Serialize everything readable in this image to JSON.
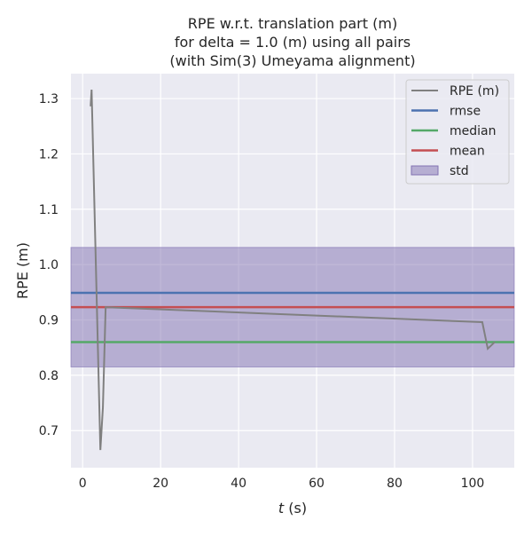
{
  "chart_data": {
    "type": "line",
    "title": [
      "RPE w.r.t. translation part (m)",
      "for delta = 1.0 (m) using all pairs",
      "(with Sim(3) Umeyama alignment)"
    ],
    "xlabel_italic": "t",
    "xlabel_unit": " (s)",
    "ylabel": "RPE (m)",
    "xlim": [
      -3,
      110.7
    ],
    "ylim": [
      0.633,
      1.345
    ],
    "xticks": [
      0,
      20,
      40,
      60,
      80,
      100
    ],
    "yticks": [
      0.7,
      0.8,
      0.9,
      1.0,
      1.1,
      1.2,
      1.3
    ],
    "ytick_labels": [
      "0.7",
      "0.8",
      "0.9",
      "1.0",
      "1.1",
      "1.2",
      "1.3"
    ],
    "grid": true,
    "legend_position": "top-right",
    "series": [
      {
        "name": "RPE (m)",
        "color": "#808080",
        "x": [
          2.05,
          2.3,
          4.55,
          5.2,
          5.9,
          102.5,
          103.9,
          105.7
        ],
        "y": [
          1.286,
          1.316,
          0.665,
          0.742,
          0.923,
          0.896,
          0.848,
          0.86
        ]
      }
    ],
    "stats": {
      "rmse": 0.949,
      "median": 0.86,
      "mean": 0.923,
      "std": 0.108
    },
    "legend": [
      "RPE (m)",
      "rmse",
      "median",
      "mean",
      "std"
    ],
    "colors": {
      "rmse": "#4c72b0",
      "median": "#55a868",
      "mean": "#c44e52",
      "std": "#8172b2",
      "bg": "#eaeaf2"
    }
  }
}
